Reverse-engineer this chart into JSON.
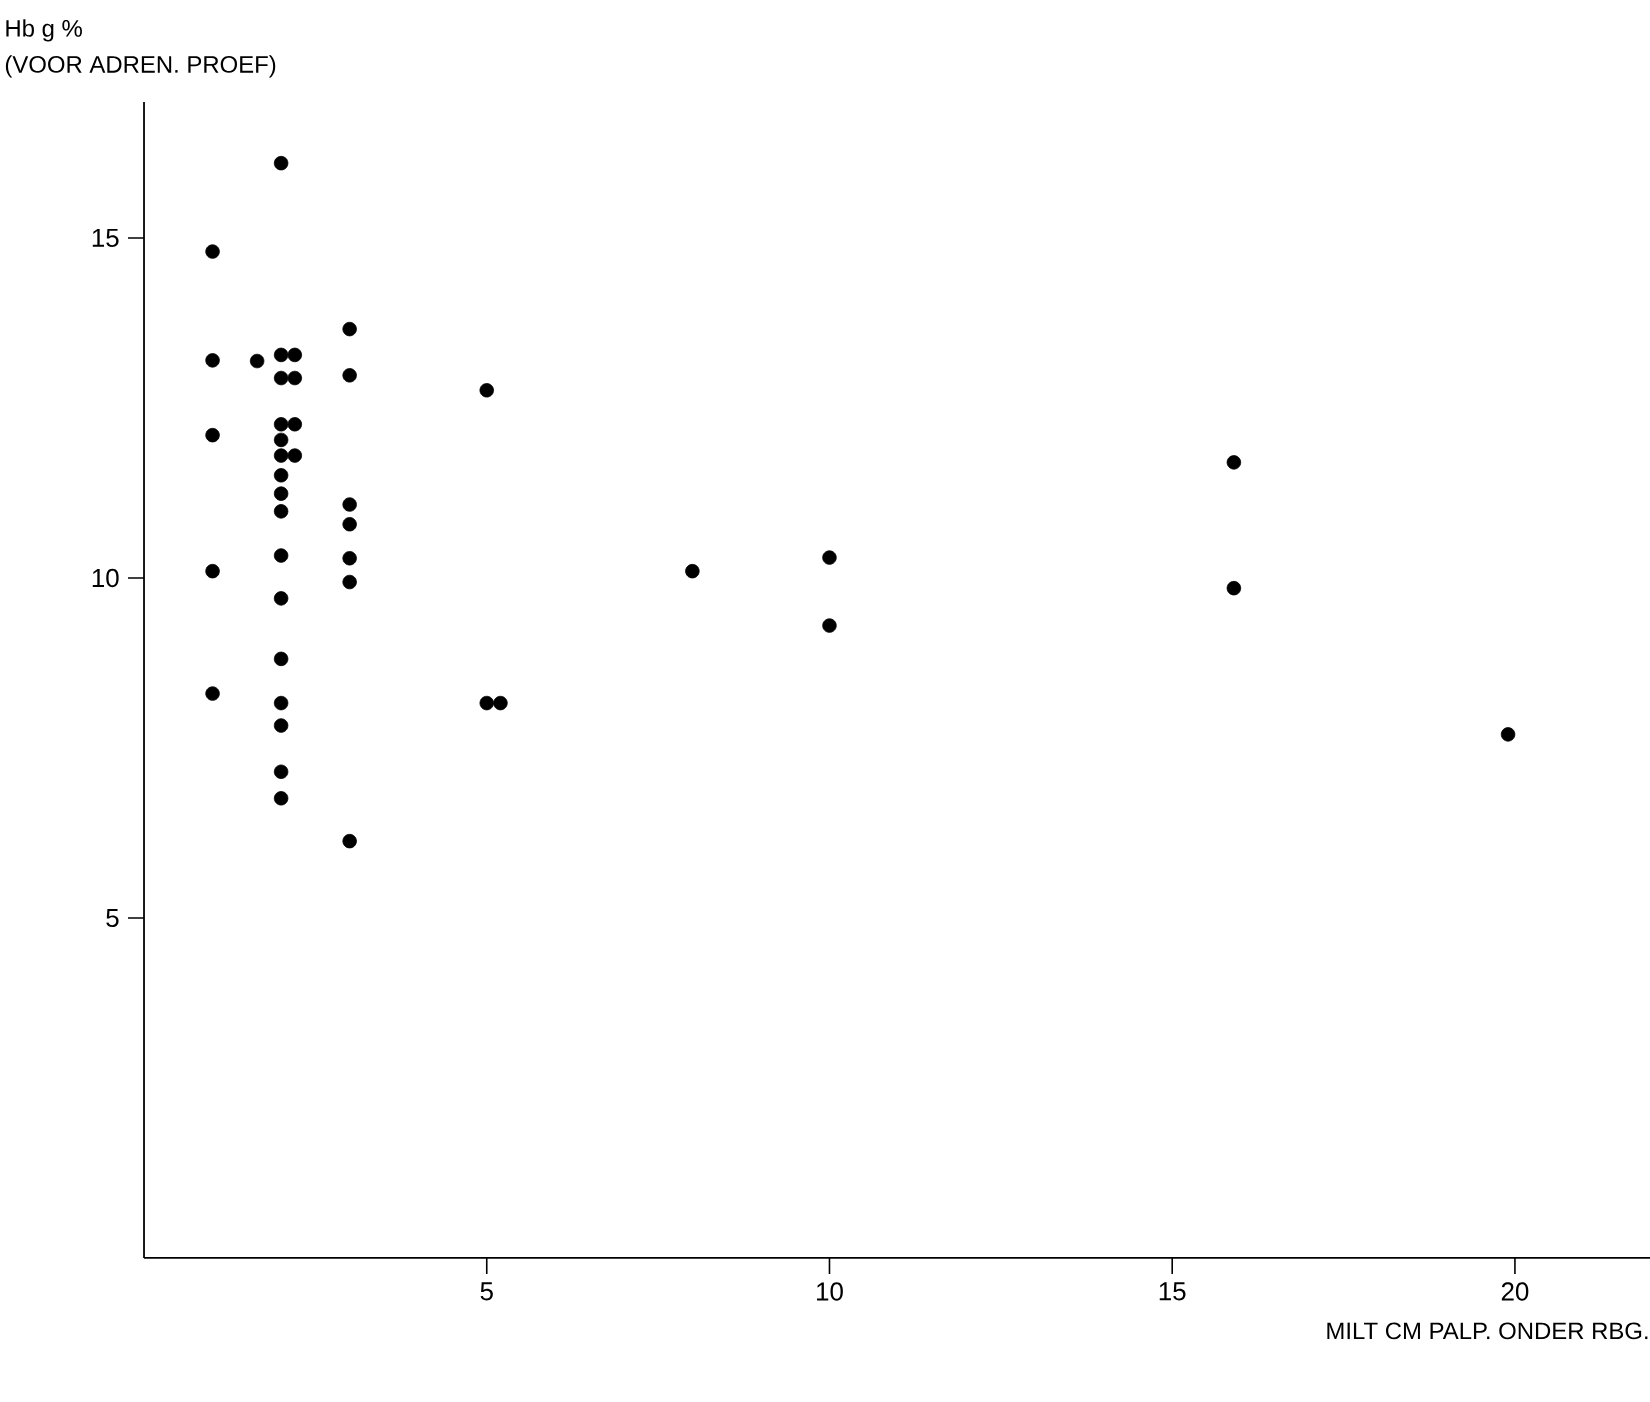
{
  "chart_data": {
    "type": "scatter",
    "xlabel": "MILT CM  PALP. ONDER  RBG.",
    "ylabel": "Hb  g %",
    "annotations": [
      "(VOOR ADREN. PROEF)"
    ],
    "x": [
      1,
      1,
      1,
      1,
      1,
      2,
      2,
      2.2,
      1.65,
      2,
      2.2,
      2,
      2.2,
      2,
      2,
      2.2,
      2,
      2,
      2,
      2,
      2,
      2,
      2,
      2,
      2,
      2,
      3,
      3,
      3,
      3,
      3,
      3,
      3,
      5,
      5,
      5.2,
      8,
      10,
      10,
      15.9,
      15.9,
      19.9
    ],
    "values": [
      14.8,
      13.2,
      12.1,
      10.1,
      8.3,
      16.1,
      13.28,
      13.28,
      13.19,
      12.94,
      12.94,
      12.26,
      12.26,
      12.03,
      11.8,
      11.8,
      11.51,
      11.24,
      10.98,
      10.33,
      9.7,
      8.81,
      8.16,
      7.83,
      7.15,
      6.76,
      13.66,
      12.98,
      11.08,
      10.79,
      10.29,
      9.94,
      6.13,
      12.76,
      8.16,
      8.16,
      10.1,
      10.3,
      9.3,
      11.7,
      9.85,
      7.7
    ],
    "color": "#000000",
    "marker": "circle",
    "xlim": [
      0,
      22
    ],
    "ylim": [
      0,
      17
    ],
    "xticks": [
      5,
      10,
      15,
      20
    ],
    "yticks": [
      5,
      10,
      15
    ]
  }
}
